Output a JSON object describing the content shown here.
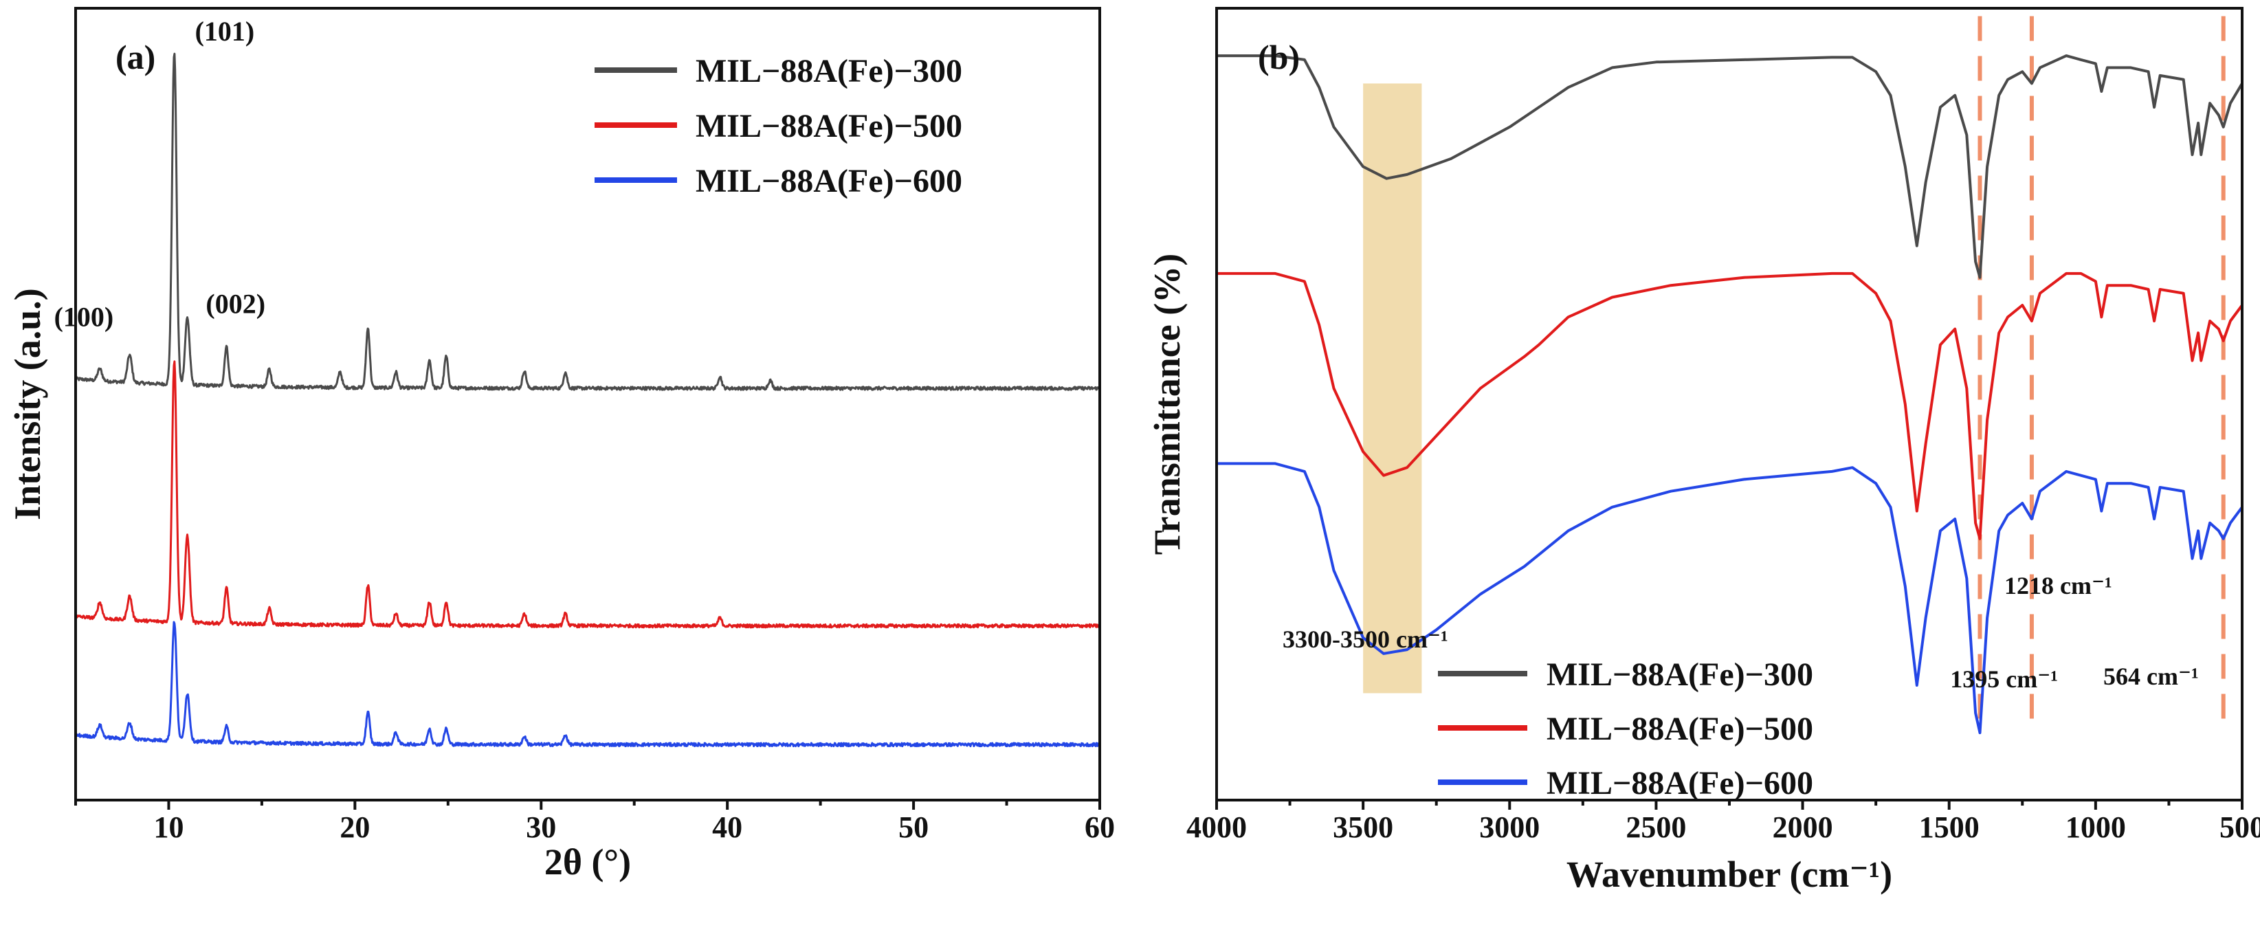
{
  "colors": {
    "s300": "#4a4a4a",
    "s500": "#e11b1b",
    "s600": "#2346e6",
    "band": "#f1dcae",
    "marker": "#f0906a"
  },
  "chart_data": [
    {
      "type": "line",
      "panel": "(a)",
      "title": "",
      "xlabel": "2θ (°)",
      "ylabel": "Intensity (a.u.)",
      "xlim": [
        5,
        60
      ],
      "xticks": [
        10,
        20,
        30,
        40,
        50,
        60
      ],
      "ylim": [
        0,
        1
      ],
      "yticks_shown": false,
      "legend_position": "top-right",
      "series": [
        {
          "name": "MIL−88A(Fe)−300",
          "color_key": "s300",
          "offset": 0.52,
          "baseline": 0.0,
          "noise": 0.004,
          "peaks": [
            {
              "x": 6.3,
              "h": 0.015
            },
            {
              "x": 7.9,
              "h": 0.035
            },
            {
              "x": 10.3,
              "h": 0.42
            },
            {
              "x": 11.0,
              "h": 0.085
            },
            {
              "x": 13.1,
              "h": 0.05
            },
            {
              "x": 15.4,
              "h": 0.022
            },
            {
              "x": 19.2,
              "h": 0.02
            },
            {
              "x": 20.7,
              "h": 0.075
            },
            {
              "x": 22.2,
              "h": 0.02
            },
            {
              "x": 24.0,
              "h": 0.035
            },
            {
              "x": 24.9,
              "h": 0.04
            },
            {
              "x": 29.1,
              "h": 0.022
            },
            {
              "x": 31.3,
              "h": 0.02
            },
            {
              "x": 39.6,
              "h": 0.015
            },
            {
              "x": 42.3,
              "h": 0.01
            }
          ],
          "annotations": [
            {
              "label": "(100)",
              "x": 7.9
            },
            {
              "label": "(101)",
              "x": 10.3
            },
            {
              "label": "(002)",
              "x": 13.1
            }
          ]
        },
        {
          "name": "MIL−88A(Fe)−500",
          "color_key": "s500",
          "offset": 0.22,
          "baseline": 0.0,
          "noise": 0.004,
          "peaks": [
            {
              "x": 6.3,
              "h": 0.02
            },
            {
              "x": 7.9,
              "h": 0.03
            },
            {
              "x": 10.3,
              "h": 0.33
            },
            {
              "x": 11.0,
              "h": 0.11
            },
            {
              "x": 13.1,
              "h": 0.045
            },
            {
              "x": 15.4,
              "h": 0.02
            },
            {
              "x": 20.7,
              "h": 0.05
            },
            {
              "x": 22.2,
              "h": 0.015
            },
            {
              "x": 24.0,
              "h": 0.03
            },
            {
              "x": 24.9,
              "h": 0.03
            },
            {
              "x": 29.1,
              "h": 0.015
            },
            {
              "x": 31.3,
              "h": 0.015
            },
            {
              "x": 39.6,
              "h": 0.01
            }
          ]
        },
        {
          "name": "MIL−88A(Fe)−600",
          "color_key": "s600",
          "offset": 0.07,
          "baseline": 0.0,
          "noise": 0.004,
          "peaks": [
            {
              "x": 6.3,
              "h": 0.015
            },
            {
              "x": 7.9,
              "h": 0.02
            },
            {
              "x": 10.3,
              "h": 0.15
            },
            {
              "x": 11.0,
              "h": 0.06
            },
            {
              "x": 13.1,
              "h": 0.02
            },
            {
              "x": 20.7,
              "h": 0.04
            },
            {
              "x": 22.2,
              "h": 0.015
            },
            {
              "x": 24.0,
              "h": 0.02
            },
            {
              "x": 24.9,
              "h": 0.02
            },
            {
              "x": 29.1,
              "h": 0.01
            },
            {
              "x": 31.3,
              "h": 0.012
            }
          ]
        }
      ]
    },
    {
      "type": "line",
      "panel": "(b)",
      "title": "",
      "xlabel": "Wavenumber (cm⁻¹)",
      "ylabel": "Transmittance (%)",
      "xlim": [
        4000,
        500
      ],
      "xticks": [
        4000,
        3500,
        3000,
        2500,
        2000,
        1500,
        1000,
        500
      ],
      "ylim": [
        0,
        1
      ],
      "yticks_shown": false,
      "legend_position": "bottom-center",
      "highlight_band": {
        "x1": 3500,
        "x2": 3300,
        "label": "3300-3500 cm⁻¹"
      },
      "marker_lines": [
        {
          "x": 1395,
          "label": "1395 cm⁻¹"
        },
        {
          "x": 1218,
          "label": "1218 cm⁻¹"
        },
        {
          "x": 564,
          "label": "564 cm⁻¹"
        }
      ],
      "series": [
        {
          "name": "MIL−88A(Fe)−300",
          "color_key": "s300",
          "base": 0.94,
          "points": [
            [
              4000,
              0.94
            ],
            [
              3800,
              0.94
            ],
            [
              3700,
              0.935
            ],
            [
              3650,
              0.9
            ],
            [
              3600,
              0.85
            ],
            [
              3500,
              0.8
            ],
            [
              3420,
              0.785
            ],
            [
              3350,
              0.79
            ],
            [
              3200,
              0.81
            ],
            [
              3000,
              0.85
            ],
            [
              2900,
              0.875
            ],
            [
              2800,
              0.9
            ],
            [
              2650,
              0.925
            ],
            [
              2500,
              0.932
            ],
            [
              2200,
              0.935
            ],
            [
              1900,
              0.938
            ],
            [
              1830,
              0.938
            ],
            [
              1750,
              0.92
            ],
            [
              1700,
              0.89
            ],
            [
              1650,
              0.8
            ],
            [
              1610,
              0.7
            ],
            [
              1580,
              0.78
            ],
            [
              1530,
              0.875
            ],
            [
              1480,
              0.89
            ],
            [
              1440,
              0.84
            ],
            [
              1410,
              0.68
            ],
            [
              1395,
              0.66
            ],
            [
              1370,
              0.8
            ],
            [
              1330,
              0.89
            ],
            [
              1300,
              0.91
            ],
            [
              1250,
              0.92
            ],
            [
              1218,
              0.905
            ],
            [
              1190,
              0.925
            ],
            [
              1100,
              0.94
            ],
            [
              1050,
              0.935
            ],
            [
              1000,
              0.93
            ],
            [
              980,
              0.895
            ],
            [
              960,
              0.925
            ],
            [
              880,
              0.925
            ],
            [
              820,
              0.92
            ],
            [
              800,
              0.875
            ],
            [
              780,
              0.915
            ],
            [
              700,
              0.91
            ],
            [
              670,
              0.815
            ],
            [
              650,
              0.855
            ],
            [
              640,
              0.815
            ],
            [
              610,
              0.88
            ],
            [
              580,
              0.865
            ],
            [
              564,
              0.85
            ],
            [
              540,
              0.88
            ],
            [
              500,
              0.905
            ]
          ]
        },
        {
          "name": "MIL−88A(Fe)−500",
          "color_key": "s500",
          "base": 0.66,
          "points": [
            [
              4000,
              0.665
            ],
            [
              3800,
              0.665
            ],
            [
              3700,
              0.655
            ],
            [
              3650,
              0.6
            ],
            [
              3600,
              0.52
            ],
            [
              3500,
              0.44
            ],
            [
              3430,
              0.41
            ],
            [
              3350,
              0.42
            ],
            [
              3250,
              0.46
            ],
            [
              3100,
              0.52
            ],
            [
              2950,
              0.56
            ],
            [
              2900,
              0.575
            ],
            [
              2800,
              0.61
            ],
            [
              2650,
              0.635
            ],
            [
              2450,
              0.65
            ],
            [
              2200,
              0.66
            ],
            [
              1900,
              0.665
            ],
            [
              1830,
              0.665
            ],
            [
              1750,
              0.64
            ],
            [
              1700,
              0.605
            ],
            [
              1650,
              0.5
            ],
            [
              1610,
              0.365
            ],
            [
              1580,
              0.45
            ],
            [
              1530,
              0.575
            ],
            [
              1480,
              0.595
            ],
            [
              1440,
              0.52
            ],
            [
              1410,
              0.35
            ],
            [
              1395,
              0.33
            ],
            [
              1370,
              0.48
            ],
            [
              1330,
              0.59
            ],
            [
              1300,
              0.61
            ],
            [
              1250,
              0.625
            ],
            [
              1218,
              0.605
            ],
            [
              1190,
              0.64
            ],
            [
              1100,
              0.665
            ],
            [
              1050,
              0.665
            ],
            [
              1000,
              0.655
            ],
            [
              980,
              0.61
            ],
            [
              960,
              0.65
            ],
            [
              880,
              0.65
            ],
            [
              820,
              0.645
            ],
            [
              800,
              0.605
            ],
            [
              780,
              0.645
            ],
            [
              700,
              0.64
            ],
            [
              670,
              0.555
            ],
            [
              650,
              0.59
            ],
            [
              640,
              0.555
            ],
            [
              610,
              0.605
            ],
            [
              580,
              0.595
            ],
            [
              564,
              0.58
            ],
            [
              540,
              0.605
            ],
            [
              500,
              0.625
            ]
          ]
        },
        {
          "name": "MIL−88A(Fe)−600",
          "color_key": "s600",
          "base": 0.42,
          "points": [
            [
              4000,
              0.425
            ],
            [
              3800,
              0.425
            ],
            [
              3700,
              0.415
            ],
            [
              3650,
              0.37
            ],
            [
              3600,
              0.29
            ],
            [
              3500,
              0.205
            ],
            [
              3430,
              0.185
            ],
            [
              3350,
              0.19
            ],
            [
              3250,
              0.215
            ],
            [
              3100,
              0.26
            ],
            [
              2950,
              0.295
            ],
            [
              2900,
              0.31
            ],
            [
              2800,
              0.34
            ],
            [
              2650,
              0.37
            ],
            [
              2450,
              0.39
            ],
            [
              2200,
              0.405
            ],
            [
              1900,
              0.415
            ],
            [
              1830,
              0.42
            ],
            [
              1750,
              0.4
            ],
            [
              1700,
              0.37
            ],
            [
              1650,
              0.27
            ],
            [
              1610,
              0.145
            ],
            [
              1580,
              0.23
            ],
            [
              1530,
              0.34
            ],
            [
              1480,
              0.355
            ],
            [
              1440,
              0.28
            ],
            [
              1410,
              0.11
            ],
            [
              1395,
              0.085
            ],
            [
              1370,
              0.23
            ],
            [
              1330,
              0.34
            ],
            [
              1300,
              0.36
            ],
            [
              1250,
              0.375
            ],
            [
              1218,
              0.355
            ],
            [
              1190,
              0.39
            ],
            [
              1100,
              0.415
            ],
            [
              1050,
              0.41
            ],
            [
              1000,
              0.405
            ],
            [
              980,
              0.365
            ],
            [
              960,
              0.4
            ],
            [
              880,
              0.4
            ],
            [
              820,
              0.395
            ],
            [
              800,
              0.355
            ],
            [
              780,
              0.395
            ],
            [
              700,
              0.39
            ],
            [
              670,
              0.305
            ],
            [
              650,
              0.34
            ],
            [
              640,
              0.305
            ],
            [
              610,
              0.35
            ],
            [
              580,
              0.34
            ],
            [
              564,
              0.33
            ],
            [
              540,
              0.35
            ],
            [
              500,
              0.37
            ]
          ]
        }
      ]
    }
  ]
}
